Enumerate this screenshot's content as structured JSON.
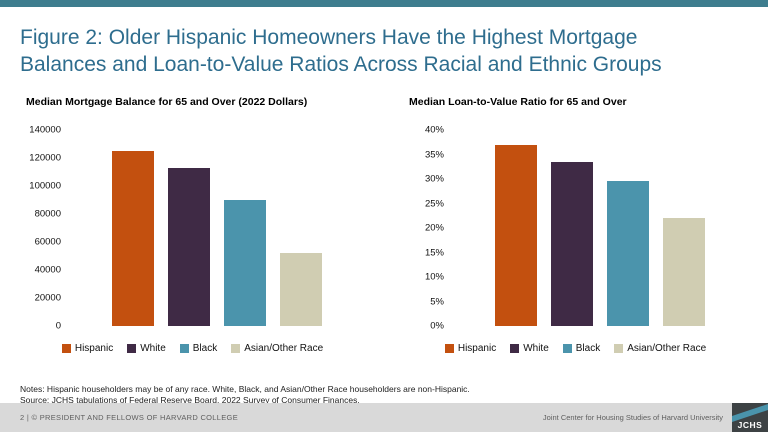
{
  "slide": {
    "title_line1": "Figure 2: Older Hispanic Homeowners Have the Highest Mortgage",
    "title_line2": "Balances and Loan-to-Value Ratios Across Racial and Ethnic Groups"
  },
  "colors": {
    "top_bar": "#3e7d8e",
    "title_text": "#2e6d8e",
    "footer_bg": "#d9d9d9",
    "footer_text": "#5f5f5f",
    "logo_bg": "#3d4244",
    "logo_accent": "#4a94ac",
    "series": [
      "#c3500f",
      "#3f2a45",
      "#4b94ac",
      "#d0cdb2"
    ]
  },
  "chart_data": [
    {
      "type": "bar",
      "title": "Median Mortgage Balance for 65 and Over (2022 Dollars)",
      "categories": [
        "Hispanic",
        "White",
        "Black",
        "Asian/Other Race"
      ],
      "values": [
        125000,
        113000,
        90000,
        52000
      ],
      "xlabel": "",
      "ylabel": "",
      "ylim": [
        0,
        140000
      ],
      "ytick_step": 20000,
      "ytick_format": "number",
      "grid": false,
      "legend_position": "bottom"
    },
    {
      "type": "bar",
      "title": "Median Loan-to-Value Ratio for 65 and Over",
      "categories": [
        "Hispanic",
        "White",
        "Black",
        "Asian/Other Race"
      ],
      "values": [
        37,
        33.5,
        29.5,
        22
      ],
      "xlabel": "",
      "ylabel": "",
      "ylim": [
        0,
        40
      ],
      "ytick_step": 5,
      "ytick_format": "percent",
      "grid": false,
      "legend_position": "bottom"
    }
  ],
  "notes": {
    "line1": "Notes: Hispanic householders may be of any race. White, Black, and Asian/Other Race householders are non-Hispanic.",
    "line2": "Source: JCHS tabulations of Federal Reserve Board, 2022 Survey of Consumer Finances."
  },
  "footer": {
    "left": "2 | © PRESIDENT AND FELLOWS OF HARVARD COLLEGE",
    "right": "Joint Center for Housing Studies of Harvard University",
    "logo": "JCHS"
  }
}
